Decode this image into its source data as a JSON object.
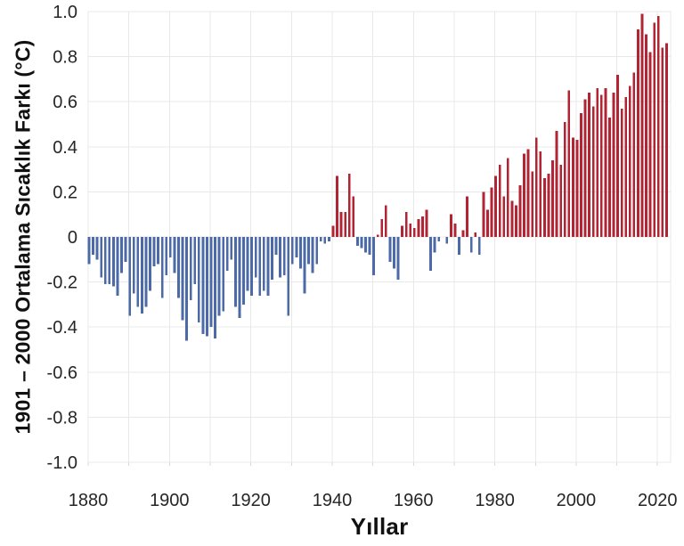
{
  "chart_data": {
    "type": "bar",
    "title": "",
    "xlabel": "Yıllar",
    "ylabel": "1901 – 2000 Ortalama Sıcaklık Farkı (°C)",
    "ylim": [
      -1.0,
      1.0
    ],
    "xlim": [
      1880,
      2023
    ],
    "grid": true,
    "grid_year_step": 10,
    "legend": "none",
    "y_tick_labels": [
      "1.0",
      "0.8",
      "0.6",
      "0.4",
      "0.2",
      "0",
      "-0.2",
      "-0.4",
      "-0.6",
      "-0.8",
      "-1.0"
    ],
    "y_tick_values": [
      1.0,
      0.8,
      0.6,
      0.4,
      0.2,
      0,
      -0.2,
      -0.4,
      -0.6,
      -0.8,
      -1.0
    ],
    "x_tick_labels": [
      "1880",
      "1900",
      "1920",
      "1940",
      "1960",
      "1980",
      "2000",
      "2020"
    ],
    "x_tick_values": [
      1880,
      1900,
      1920,
      1940,
      1960,
      1980,
      2000,
      2020
    ],
    "positive_color": "#b22433",
    "negative_color": "#4d6aa8",
    "gridline_color": "#e8e8e8",
    "tick_text_color": "#262626",
    "background_color": "#ffffff",
    "years": [
      1880,
      1881,
      1882,
      1883,
      1884,
      1885,
      1886,
      1887,
      1888,
      1889,
      1890,
      1891,
      1892,
      1893,
      1894,
      1895,
      1896,
      1897,
      1898,
      1899,
      1900,
      1901,
      1902,
      1903,
      1904,
      1905,
      1906,
      1907,
      1908,
      1909,
      1910,
      1911,
      1912,
      1913,
      1914,
      1915,
      1916,
      1917,
      1918,
      1919,
      1920,
      1921,
      1922,
      1923,
      1924,
      1925,
      1926,
      1927,
      1928,
      1929,
      1930,
      1931,
      1932,
      1933,
      1934,
      1935,
      1936,
      1937,
      1938,
      1939,
      1940,
      1941,
      1942,
      1943,
      1944,
      1945,
      1946,
      1947,
      1948,
      1949,
      1950,
      1951,
      1952,
      1953,
      1954,
      1955,
      1956,
      1957,
      1958,
      1959,
      1960,
      1961,
      1962,
      1963,
      1964,
      1965,
      1966,
      1967,
      1968,
      1969,
      1970,
      1971,
      1972,
      1973,
      1974,
      1975,
      1976,
      1977,
      1978,
      1979,
      1980,
      1981,
      1982,
      1983,
      1984,
      1985,
      1986,
      1987,
      1988,
      1989,
      1990,
      1991,
      1992,
      1993,
      1994,
      1995,
      1996,
      1997,
      1998,
      1999,
      2000,
      2001,
      2002,
      2003,
      2004,
      2005,
      2006,
      2007,
      2008,
      2009,
      2010,
      2011,
      2012,
      2013,
      2014,
      2015,
      2016,
      2017,
      2018,
      2019,
      2020,
      2021,
      2022
    ],
    "values": [
      -0.12,
      -0.08,
      -0.1,
      -0.18,
      -0.21,
      -0.21,
      -0.22,
      -0.26,
      -0.16,
      -0.11,
      -0.35,
      -0.25,
      -0.31,
      -0.34,
      -0.31,
      -0.24,
      -0.13,
      -0.12,
      -0.27,
      -0.17,
      -0.09,
      -0.16,
      -0.27,
      -0.37,
      -0.46,
      -0.28,
      -0.21,
      -0.38,
      -0.43,
      -0.44,
      -0.4,
      -0.45,
      -0.35,
      -0.33,
      -0.15,
      -0.1,
      -0.31,
      -0.36,
      -0.3,
      -0.24,
      -0.26,
      -0.18,
      -0.26,
      -0.24,
      -0.26,
      -0.19,
      -0.08,
      -0.18,
      -0.17,
      -0.35,
      -0.12,
      -0.09,
      -0.14,
      -0.25,
      -0.12,
      -0.16,
      -0.12,
      -0.02,
      -0.03,
      -0.02,
      0.05,
      0.27,
      0.11,
      0.11,
      0.28,
      0.18,
      -0.04,
      -0.05,
      -0.07,
      -0.08,
      -0.17,
      0.01,
      0.08,
      0.14,
      -0.11,
      -0.14,
      -0.19,
      0.05,
      0.11,
      0.06,
      0.04,
      0.08,
      0.09,
      0.12,
      -0.15,
      -0.07,
      -0.02,
      0.0,
      -0.03,
      0.1,
      0.06,
      -0.08,
      0.03,
      0.18,
      -0.07,
      0.02,
      -0.08,
      0.2,
      0.12,
      0.22,
      0.27,
      0.32,
      0.18,
      0.35,
      0.16,
      0.14,
      0.23,
      0.37,
      0.39,
      0.29,
      0.44,
      0.38,
      0.26,
      0.28,
      0.34,
      0.47,
      0.32,
      0.51,
      0.65,
      0.44,
      0.43,
      0.55,
      0.61,
      0.64,
      0.58,
      0.66,
      0.63,
      0.66,
      0.53,
      0.64,
      0.72,
      0.57,
      0.62,
      0.67,
      0.73,
      0.92,
      0.99,
      0.9,
      0.82,
      0.95,
      0.98,
      0.84,
      0.86
    ]
  }
}
